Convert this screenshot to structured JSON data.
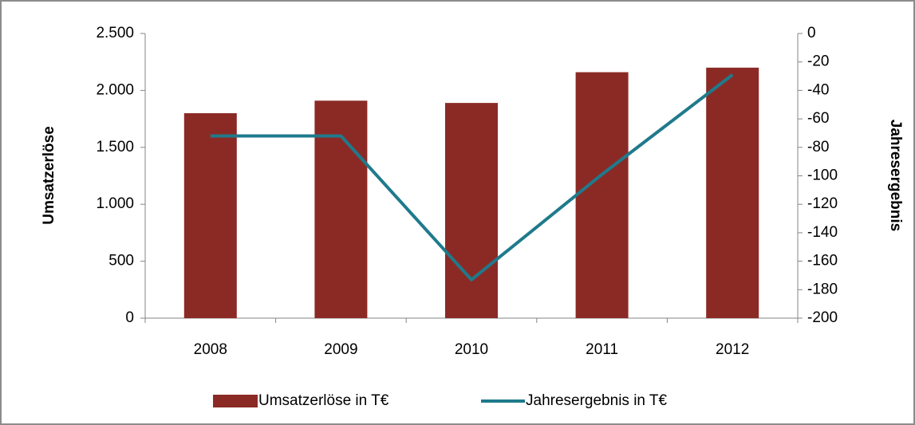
{
  "chart_data": {
    "type": "bar_line",
    "categories": [
      "2008",
      "2009",
      "2010",
      "2011",
      "2012"
    ],
    "series": [
      {
        "name": "Umsatzerlöse in T€",
        "type": "bar",
        "color": "#8b2a25",
        "values": [
          1800,
          1910,
          1890,
          2160,
          2200
        ]
      },
      {
        "name": "Jahresergebnis in T€",
        "type": "line",
        "axis": "y2",
        "color": "#1f7a8c",
        "values": [
          -72,
          -72,
          -173,
          -99,
          -29
        ]
      }
    ],
    "ylabel": "Umsatzerlöse",
    "y2label": "Jahresergebnis",
    "ylim": [
      0,
      2500
    ],
    "yticks": [
      0,
      500,
      {
        "value": 1000,
        "label": "1.000"
      },
      {
        "value": 1500,
        "label": "1.500"
      },
      {
        "value": 2000,
        "label": "2.000"
      },
      {
        "value": 2500,
        "label": "2.500"
      }
    ],
    "y2lim": [
      -200,
      0
    ],
    "y2ticks": [
      -200,
      -180,
      -160,
      -140,
      -120,
      -100,
      -80,
      -60,
      -40,
      -20,
      0
    ],
    "grid": false,
    "legend": "bottom"
  }
}
